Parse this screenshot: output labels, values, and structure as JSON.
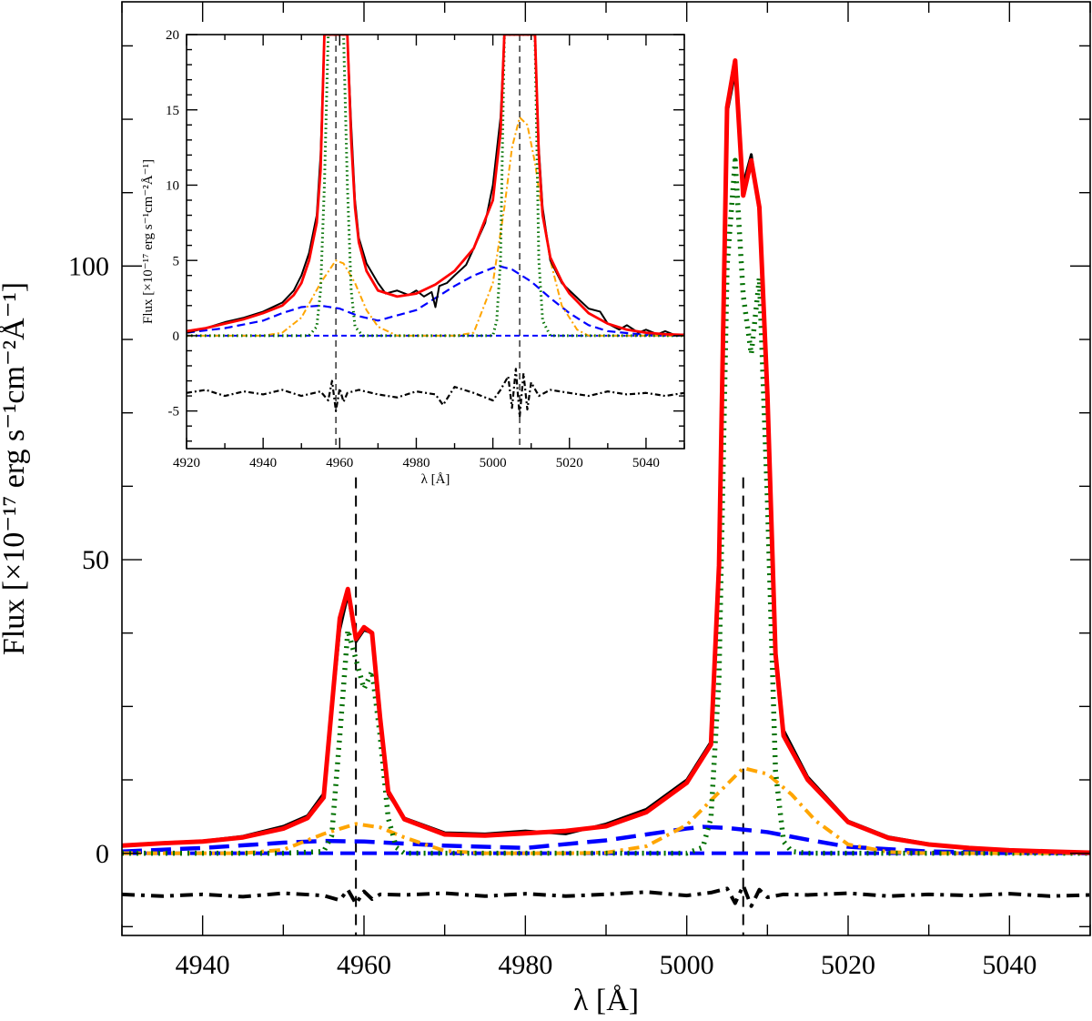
{
  "chart_data": [
    {
      "type": "line",
      "role": "main",
      "xlabel": "λ [Å]",
      "ylabel": "Flux [×10⁻¹⁷ erg s⁻¹cm⁻²Å⁻¹]",
      "xlim": [
        4930,
        5050
      ],
      "ylim": [
        -14,
        145
      ],
      "xticks": [
        4940,
        4960,
        4980,
        5000,
        5020,
        5040
      ],
      "yticks": [
        0,
        50,
        100
      ],
      "grid": false,
      "vlines": [
        4959,
        5007
      ],
      "series": [
        {
          "key": "observed",
          "color": "#000000",
          "x": [
            4930,
            4935,
            4940,
            4945,
            4950,
            4953,
            4955,
            4957,
            4958,
            4959,
            4960,
            4961,
            4962,
            4963,
            4965,
            4970,
            4975,
            4980,
            4985,
            4990,
            4995,
            5000,
            5003,
            5004,
            5005,
            5006,
            5007,
            5008,
            5009,
            5010,
            5011,
            5012,
            5015,
            5020,
            5025,
            5030,
            5035,
            5040,
            5045,
            5050
          ],
          "y": [
            1.4,
            1.8,
            2.1,
            2.9,
            4.6,
            6.4,
            10.2,
            38.0,
            44.0,
            36.0,
            38.0,
            37.5,
            22.0,
            10.0,
            6.0,
            3.5,
            3.3,
            3.8,
            3.3,
            5.0,
            7.5,
            12.5,
            19.0,
            50.0,
            126.0,
            133.0,
            114.0,
            119.0,
            109.0,
            80.0,
            35.0,
            21.0,
            13.0,
            5.5,
            2.8,
            1.6,
            0.9,
            0.6,
            0.3,
            0.1
          ]
        },
        {
          "key": "total-fit",
          "color": "#ff0000",
          "x": [
            4930,
            4935,
            4940,
            4945,
            4950,
            4953,
            4955,
            4957,
            4958,
            4959,
            4960,
            4961,
            4962,
            4963,
            4965,
            4970,
            4975,
            4980,
            4985,
            4990,
            4995,
            5000,
            5003,
            5004,
            5005,
            5006,
            5007,
            5008,
            5009,
            5010,
            5011,
            5012,
            5015,
            5020,
            5025,
            5030,
            5035,
            5040,
            5045,
            5050
          ],
          "y": [
            1.3,
            1.7,
            2.0,
            2.7,
            4.2,
            6.0,
            9.5,
            40.0,
            45.0,
            36.5,
            38.5,
            37.5,
            23.0,
            10.5,
            5.8,
            3.2,
            3.0,
            3.4,
            3.8,
            4.6,
            7.0,
            12.0,
            18.5,
            49.0,
            127.0,
            135.0,
            112.0,
            118.0,
            110.0,
            78.0,
            34.0,
            20.0,
            12.5,
            5.3,
            2.6,
            1.5,
            0.9,
            0.5,
            0.3,
            0.1
          ]
        },
        {
          "key": "narrow-component",
          "color": "#007000",
          "x": [
            4930,
            4950,
            4955,
            4956,
            4957,
            4958,
            4959,
            4960,
            4961,
            4962,
            4963,
            4964,
            4965,
            4970,
            5000,
            5002,
            5003,
            5004,
            5005,
            5006,
            5007,
            5008,
            5009,
            5010,
            5011,
            5012,
            5013,
            5015,
            5050
          ],
          "y": [
            0,
            0,
            0.3,
            3.0,
            20.0,
            38.0,
            33.0,
            28.0,
            31.0,
            20.0,
            6.0,
            1.0,
            0,
            0,
            0,
            1.0,
            6.0,
            30.0,
            100.0,
            118.0,
            95.0,
            85.0,
            98.0,
            60.0,
            14.0,
            2.0,
            0.3,
            0,
            0
          ]
        },
        {
          "key": "intermediate-component",
          "color": "#ffa500",
          "x": [
            4930,
            4945,
            4950,
            4955,
            4959,
            4962,
            4965,
            4970,
            4975,
            4980,
            4985,
            4990,
            4995,
            5000,
            5003,
            5007,
            5010,
            5013,
            5016,
            5020,
            5025,
            5030,
            5050
          ],
          "y": [
            0,
            0,
            0.6,
            3.3,
            5.0,
            4.4,
            2.7,
            0.4,
            0,
            0,
            0,
            0.1,
            1.2,
            4.8,
            9.0,
            14.5,
            13.5,
            10.0,
            5.5,
            1.5,
            0.2,
            0,
            0
          ]
        },
        {
          "key": "broad-component",
          "color": "#0000ff",
          "x": [
            4930,
            4940,
            4950,
            4955,
            4960,
            4970,
            4980,
            4990,
            5000,
            5002,
            5005,
            5010,
            5015,
            5020,
            5030,
            5040,
            5050
          ],
          "y": [
            0.3,
            0.9,
            1.8,
            2.1,
            2.0,
            1.3,
            0.9,
            2.2,
            4.2,
            4.5,
            4.3,
            3.6,
            2.3,
            1.1,
            0.3,
            0.1,
            0
          ]
        },
        {
          "key": "baseline",
          "color": "#0000ff",
          "x": [
            4930,
            5050
          ],
          "y": [
            0,
            0
          ]
        },
        {
          "key": "residuals",
          "color": "#000000",
          "x": [
            4930,
            4935,
            4940,
            4945,
            4950,
            4955,
            4957,
            4958,
            4959,
            4960,
            4961,
            4962,
            4965,
            4970,
            4975,
            4980,
            4985,
            4990,
            4995,
            5000,
            5003,
            5005,
            5006,
            5007,
            5008,
            5009,
            5010,
            5012,
            5015,
            5020,
            5025,
            5030,
            5035,
            5040,
            5045,
            5050
          ],
          "y": [
            -7.0,
            -7.3,
            -7.0,
            -7.4,
            -6.8,
            -7.2,
            -8.0,
            -6.2,
            -8.6,
            -6.5,
            -7.8,
            -7.0,
            -7.1,
            -6.8,
            -7.3,
            -6.9,
            -7.3,
            -7.0,
            -6.6,
            -7.2,
            -6.7,
            -6.0,
            -8.5,
            -5.5,
            -9.0,
            -6.2,
            -7.5,
            -7.0,
            -7.1,
            -6.8,
            -7.3,
            -7.0,
            -7.2,
            -6.9,
            -7.3,
            -7.1
          ]
        }
      ]
    },
    {
      "type": "line",
      "role": "inset",
      "xlabel": "λ [Å]",
      "ylabel": "Flux [×10⁻¹⁷ erg s⁻¹cm⁻²Å⁻¹]",
      "xlim": [
        4920,
        5050
      ],
      "ylim": [
        -7.5,
        20
      ],
      "xticks": [
        4920,
        4940,
        4960,
        4980,
        5000,
        5020,
        5040
      ],
      "yticks": [
        -5,
        0,
        5,
        10,
        15,
        20
      ],
      "grid": false,
      "vlines": [
        4959,
        5007
      ],
      "series": [
        {
          "key": "observed",
          "color": "#000000",
          "x": [
            4920,
            4925,
            4930,
            4935,
            4940,
            4945,
            4948,
            4950,
            4952,
            4954,
            4955,
            4956,
            4957,
            4961,
            4962,
            4963,
            4964,
            4965,
            4967,
            4970,
            4972,
            4975,
            4978,
            4980,
            4982,
            4984,
            4985,
            4986,
            4988,
            4990,
            4993,
            4995,
            4998,
            5000,
            5002,
            5003,
            5004,
            5010,
            5011,
            5012,
            5013,
            5015,
            5018,
            5020,
            5025,
            5028,
            5030,
            5033,
            5035,
            5038,
            5040,
            5043,
            5045,
            5048,
            5050
          ],
          "y": [
            0.2,
            0.5,
            0.9,
            1.2,
            1.6,
            2.2,
            3.0,
            4.0,
            5.5,
            8.0,
            12.0,
            20.0,
            20.0,
            20.0,
            20.0,
            14.0,
            9.0,
            6.5,
            4.8,
            3.5,
            2.8,
            3.0,
            2.7,
            3.0,
            2.6,
            2.9,
            1.9,
            3.3,
            3.5,
            4.0,
            4.7,
            5.8,
            7.5,
            10.0,
            14.5,
            20.0,
            20.0,
            20.0,
            20.0,
            12.5,
            8.5,
            5.0,
            3.5,
            3.0,
            1.8,
            1.6,
            0.8,
            0.4,
            0.7,
            0.2,
            0.4,
            0.1,
            0.3,
            0.0,
            0.1
          ]
        },
        {
          "key": "total-fit",
          "color": "#ff0000",
          "x": [
            4920,
            4925,
            4930,
            4935,
            4940,
            4945,
            4948,
            4950,
            4952,
            4954,
            4955,
            4956,
            4957,
            4961,
            4962,
            4963,
            4964,
            4965,
            4967,
            4970,
            4975,
            4980,
            4985,
            4990,
            4995,
            5000,
            5002,
            5003,
            5004,
            5010,
            5011,
            5012,
            5013,
            5015,
            5018,
            5020,
            5025,
            5030,
            5035,
            5040,
            5045,
            5050
          ],
          "y": [
            0.3,
            0.5,
            0.8,
            1.1,
            1.5,
            2.0,
            2.7,
            3.5,
            5.0,
            7.5,
            11.0,
            20.0,
            20.0,
            20.0,
            20.0,
            13.0,
            8.5,
            6.2,
            4.3,
            3.0,
            2.6,
            2.8,
            3.4,
            4.3,
            5.8,
            9.0,
            13.5,
            20.0,
            20.0,
            20.0,
            20.0,
            12.0,
            8.0,
            5.2,
            3.6,
            2.8,
            1.5,
            0.8,
            0.4,
            0.2,
            0.1,
            0.05
          ]
        },
        {
          "key": "narrow-component",
          "color": "#007000",
          "x": [
            4920,
            4952,
            4954,
            4955,
            4956,
            4957,
            4961,
            4962,
            4963,
            4964,
            4966,
            5000,
            5001,
            5002,
            5003,
            5011,
            5012,
            5013,
            5015,
            5050
          ],
          "y": [
            0,
            0,
            0.6,
            3.0,
            10.0,
            20.0,
            20.0,
            10.0,
            3.0,
            0.6,
            0,
            0,
            1.0,
            5.0,
            20.0,
            20.0,
            5.0,
            1.0,
            0,
            0
          ]
        },
        {
          "key": "intermediate-component",
          "color": "#ffa500",
          "x": [
            4920,
            4940,
            4945,
            4950,
            4955,
            4959,
            4961,
            4964,
            4967,
            4970,
            4975,
            4990,
            4995,
            5000,
            5003,
            5005,
            5007,
            5009,
            5011,
            5013,
            5015,
            5018,
            5022,
            5025,
            5050
          ],
          "y": [
            0,
            0,
            0.2,
            1.2,
            3.5,
            5.0,
            4.8,
            3.5,
            1.7,
            0.6,
            0,
            0,
            0.2,
            3.5,
            8.5,
            12.5,
            14.5,
            14.0,
            11.5,
            8.0,
            5.0,
            2.0,
            0.4,
            0,
            0
          ]
        },
        {
          "key": "broad-component",
          "color": "#0000ff",
          "x": [
            4920,
            4930,
            4940,
            4945,
            4950,
            4955,
            4960,
            4965,
            4970,
            4980,
            4985,
            4990,
            4995,
            5000,
            5002,
            5005,
            5010,
            5015,
            5020,
            5025,
            5030,
            5040,
            5050
          ],
          "y": [
            0.2,
            0.5,
            1.0,
            1.5,
            1.9,
            2.0,
            1.8,
            1.3,
            1.0,
            1.7,
            2.5,
            3.3,
            4.0,
            4.5,
            4.6,
            4.4,
            3.6,
            2.5,
            1.5,
            0.7,
            0.3,
            0.05,
            0
          ]
        },
        {
          "key": "baseline",
          "color": "#0000ff",
          "x": [
            4920,
            5050
          ],
          "y": [
            0,
            0
          ]
        },
        {
          "key": "residuals",
          "color": "#000000",
          "x": [
            4920,
            4925,
            4930,
            4935,
            4940,
            4945,
            4950,
            4955,
            4957,
            4958,
            4959,
            4960,
            4961,
            4962,
            4965,
            4970,
            4975,
            4980,
            4985,
            4987,
            4990,
            4995,
            5000,
            5002,
            5004,
            5005,
            5006,
            5007,
            5008,
            5009,
            5010,
            5012,
            5015,
            5020,
            5025,
            5030,
            5035,
            5040,
            5045,
            5050
          ],
          "y": [
            -3.8,
            -3.6,
            -4.0,
            -3.7,
            -3.9,
            -3.6,
            -4.0,
            -3.7,
            -4.3,
            -3.0,
            -5.0,
            -3.5,
            -4.4,
            -3.8,
            -3.6,
            -3.9,
            -4.1,
            -3.7,
            -3.9,
            -4.6,
            -3.4,
            -3.8,
            -4.3,
            -3.6,
            -2.7,
            -4.8,
            -2.2,
            -5.4,
            -2.5,
            -4.9,
            -3.1,
            -4.0,
            -3.6,
            -3.8,
            -4.0,
            -3.7,
            -3.9,
            -3.8,
            -4.0,
            -3.8
          ]
        }
      ]
    }
  ]
}
